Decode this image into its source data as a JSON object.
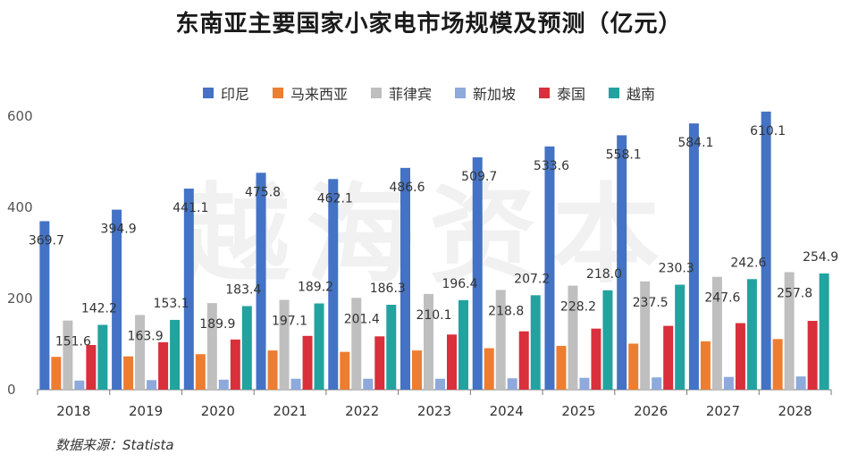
{
  "watermark": "越海资本",
  "source": "数据来源：Statista",
  "colors": {
    "印尼": "#4472C4",
    "马来西亚": "#ED7D31",
    "菲律宾": "#BFBFBF",
    "新加坡": "#8EA9DB",
    "泰国": "#D9303B",
    "越南": "#22A39F"
  },
  "chart_data": {
    "type": "bar",
    "title": "东南亚主要国家小家电市场规模及预测（亿元）",
    "xlabel": "",
    "ylabel": "",
    "ylim": [
      0,
      600
    ],
    "yticks": [
      0,
      200,
      400,
      600
    ],
    "grid": false,
    "legend_position": "top",
    "categories": [
      "2018",
      "2019",
      "2020",
      "2021",
      "2022",
      "2023",
      "2024",
      "2025",
      "2026",
      "2027",
      "2028"
    ],
    "series": [
      {
        "name": "印尼",
        "values": [
          369.7,
          394.9,
          441.1,
          475.8,
          462.1,
          486.6,
          509.7,
          533.6,
          558.1,
          584.1,
          610.1
        ],
        "labeled": true
      },
      {
        "name": "马来西亚",
        "values": [
          72,
          73,
          78,
          86,
          83,
          86,
          91,
          96,
          101,
          106,
          111
        ],
        "labeled": false
      },
      {
        "name": "菲律宾",
        "values": [
          151.6,
          163.9,
          189.9,
          197.1,
          201.4,
          210.1,
          218.8,
          228.2,
          237.5,
          247.6,
          257.8
        ],
        "labeled": true
      },
      {
        "name": "新加坡",
        "values": [
          20,
          21,
          22,
          24,
          24,
          24,
          25,
          26,
          27,
          28,
          29
        ],
        "labeled": false
      },
      {
        "name": "泰国",
        "values": [
          98,
          104,
          110,
          118,
          117,
          121,
          128,
          134,
          140,
          146,
          151
        ],
        "labeled": false
      },
      {
        "name": "越南",
        "values": [
          142.2,
          153.1,
          183.4,
          189.2,
          186.3,
          196.4,
          207.2,
          218.0,
          230.3,
          242.6,
          254.9
        ],
        "labeled": true
      }
    ]
  }
}
